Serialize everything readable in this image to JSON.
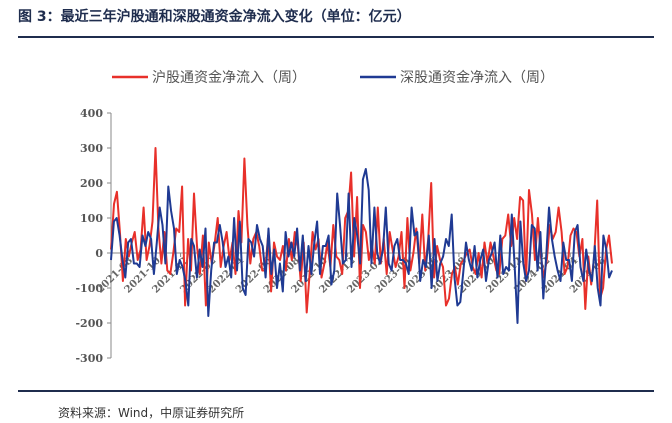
{
  "figure": {
    "title": "图 3：最近三年沪股通和深股通资金净流入变化（单位：亿元）",
    "source": "资料来源：Wind，中原证券研究所"
  },
  "colors": {
    "sh": "#e8302a",
    "sz": "#1f3a93",
    "axis": "#888888",
    "rule": "#1f2d4e"
  },
  "chart_data": {
    "type": "line",
    "title": "",
    "xlabel": "",
    "ylabel": "",
    "ylim": [
      -300,
      400
    ],
    "yticks": [
      -300,
      -200,
      -100,
      0,
      100,
      200,
      300,
      400
    ],
    "grid": false,
    "legend_position": "top",
    "x_tick_labels": [
      "2021-08",
      "2021-10",
      "2021-12",
      "2022-02",
      "2022-04",
      "2022-06",
      "2022-08",
      "2022-10",
      "2022-12",
      "2023-02",
      "2023-04",
      "2023-06",
      "2023-08",
      "2023-10",
      "2023-12",
      "2024-02",
      "2024-04",
      "2024-06"
    ],
    "series": [
      {
        "name": "沪股通资金净流入（周）",
        "color": "#e8302a",
        "values": [
          10,
          140,
          175,
          60,
          -80,
          40,
          -10,
          30,
          60,
          -20,
          10,
          130,
          -20,
          20,
          90,
          300,
          70,
          -30,
          60,
          -50,
          -60,
          0,
          70,
          60,
          190,
          -150,
          40,
          -50,
          170,
          20,
          -60,
          50,
          -150,
          30,
          -30,
          30,
          100,
          -40,
          20,
          60,
          -20,
          30,
          -60,
          120,
          30,
          270,
          80,
          -30,
          40,
          60,
          20,
          -50,
          -50,
          50,
          -110,
          30,
          -10,
          -20,
          20,
          -50,
          40,
          -20,
          60,
          20,
          -80,
          30,
          -170,
          -60,
          60,
          10,
          40,
          -70,
          -30,
          30,
          -40,
          80,
          -10,
          -20,
          -60,
          100,
          120,
          230,
          -10,
          160,
          -100,
          80,
          60,
          -20,
          20,
          -30,
          130,
          -30,
          40,
          -60,
          60,
          10,
          -40,
          -10,
          60,
          -100,
          100,
          -50,
          0,
          70,
          -30,
          110,
          -50,
          40,
          200,
          -70,
          20,
          -20,
          -40,
          -150,
          -130,
          -60,
          -40,
          -90,
          -30,
          -20,
          0,
          10,
          -40,
          -60,
          0,
          -70,
          30,
          -30,
          30,
          -10,
          -50,
          -60,
          40,
          50,
          110,
          20,
          100,
          40,
          160,
          150,
          -80,
          180,
          110,
          -20,
          100,
          -10,
          -70,
          -20,
          80,
          40,
          60,
          130,
          60,
          -60,
          -40,
          50,
          70,
          60,
          -10,
          40,
          -160,
          -10,
          -90,
          -10,
          150,
          -130,
          -100,
          10,
          50,
          -30
        ]
      },
      {
        "name": "深股通资金净流入（周）",
        "color": "#1f3a93",
        "values": [
          -20,
          90,
          100,
          50,
          -20,
          -70,
          30,
          40,
          -30,
          -30,
          -40,
          50,
          20,
          60,
          40,
          -60,
          30,
          130,
          80,
          -30,
          190,
          120,
          70,
          -60,
          -20,
          -40,
          -80,
          -150,
          40,
          20,
          -70,
          10,
          -40,
          70,
          -180,
          -50,
          30,
          30,
          80,
          30,
          -40,
          -10,
          -70,
          100,
          -50,
          90,
          -100,
          -120,
          40,
          30,
          -10,
          80,
          40,
          20,
          -70,
          70,
          -60,
          10,
          -100,
          -30,
          -110,
          60,
          -10,
          30,
          -10,
          70,
          -50,
          50,
          -80,
          20,
          -60,
          30,
          90,
          -60,
          20,
          20,
          50,
          -90,
          -50,
          170,
          80,
          -30,
          -20,
          170,
          -40,
          100,
          50,
          -30,
          210,
          240,
          180,
          -30,
          130,
          0,
          -30,
          10,
          130,
          -30,
          -50,
          20,
          40,
          -20,
          -20,
          -30,
          -60,
          130,
          50,
          60,
          -80,
          -20,
          -40,
          50,
          -100,
          40,
          -80,
          -30,
          -10,
          40,
          20,
          110,
          -70,
          -150,
          -140,
          -60,
          30,
          -20,
          -50,
          20,
          -70,
          -20,
          10,
          -80,
          -20,
          0,
          30,
          -70,
          50,
          -60,
          -40,
          -50,
          110,
          -40,
          -200,
          90,
          -30,
          -80,
          -50,
          80,
          70,
          -50,
          60,
          -130,
          -10,
          130,
          40,
          -10,
          -50,
          -80,
          30,
          -20,
          -20,
          -80,
          60,
          80,
          -40,
          -80,
          10,
          -50,
          -80,
          20,
          -100,
          -150,
          50,
          10,
          -70,
          -50
        ]
      }
    ]
  }
}
